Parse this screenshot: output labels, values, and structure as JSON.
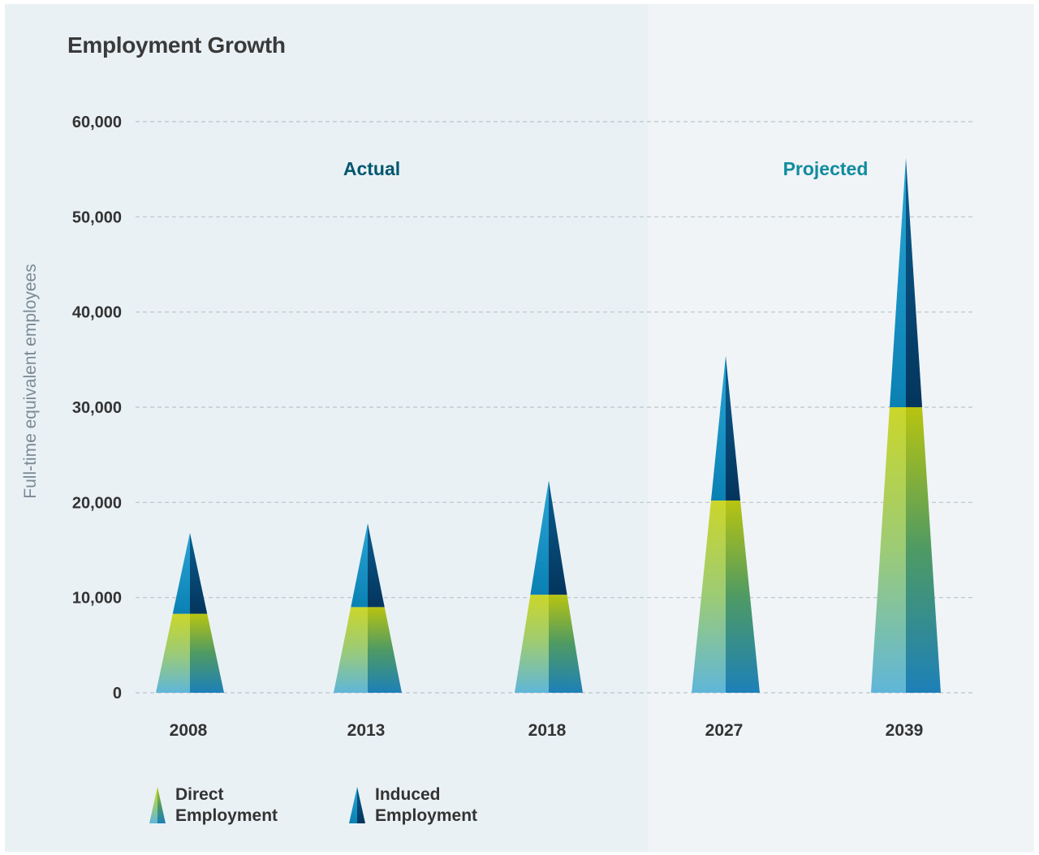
{
  "chart_data": {
    "type": "bar",
    "title": "Employment Growth",
    "ylabel": "Full-time equivalent employees",
    "xlabel": "",
    "ylim": [
      0,
      60000
    ],
    "yticks": [
      "0",
      "10,000",
      "20,000",
      "30,000",
      "40,000",
      "50,000",
      "60,000"
    ],
    "categories": [
      "2008",
      "2013",
      "2018",
      "2027",
      "2039"
    ],
    "stacked": true,
    "series": [
      {
        "name": "Direct Employment",
        "values": [
          8300,
          9000,
          10300,
          20200,
          30000
        ]
      },
      {
        "name": "Induced Employment",
        "values": [
          8500,
          8800,
          12000,
          15200,
          26200
        ]
      }
    ],
    "sections": [
      {
        "label": "Actual",
        "categories": [
          "2008",
          "2013",
          "2018"
        ]
      },
      {
        "label": "Projected",
        "categories": [
          "2027",
          "2039"
        ]
      }
    ],
    "grid": true,
    "legend": "bottom-left"
  },
  "legend": {
    "direct": {
      "line1": "Direct",
      "line2": "Employment"
    },
    "induced": {
      "line1": "Induced",
      "line2": "Employment"
    }
  },
  "colors": {
    "actual_label": "#00576f",
    "projected_label": "#108b9e",
    "direct_top": "#c8d410",
    "direct_bottom": "#4fb0d6",
    "induced_light": "#1c95c6",
    "induced_dark": "#043d66"
  }
}
